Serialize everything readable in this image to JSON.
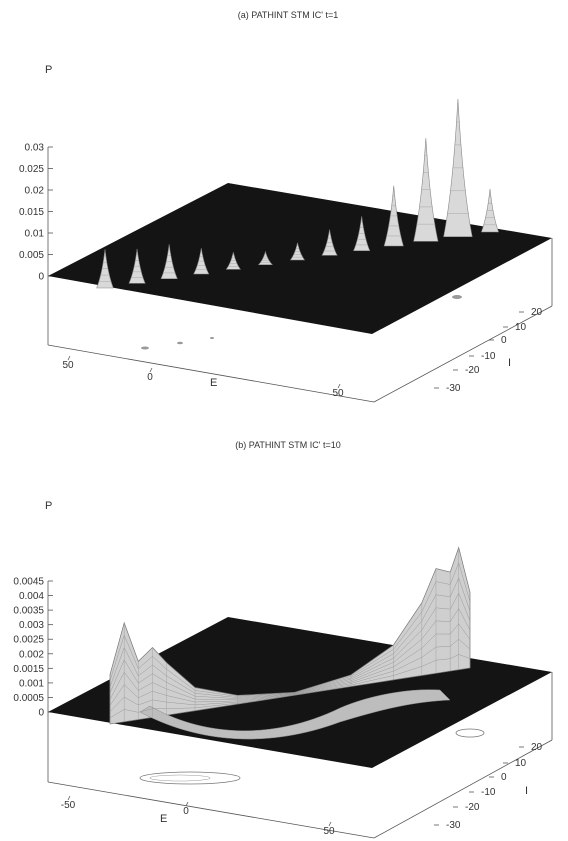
{
  "panels": [
    {
      "title": "(a) PATHINT STM IC' t=1",
      "zlabel": "P",
      "xlabel": "E",
      "ylabel": "I",
      "zticks": [
        "0.03",
        "0.025",
        "0.02",
        "0.015",
        "0.01",
        "0.005",
        "0"
      ],
      "xticks": [
        "50",
        "0",
        "50"
      ],
      "yticks": [
        "20",
        "10",
        "0",
        "-10",
        "-20",
        "-30"
      ]
    },
    {
      "title": "(b) PATHINT STM IC' t=10",
      "zlabel": "P",
      "xlabel": "E",
      "ylabel": "I",
      "zticks": [
        "0.0045",
        "0.004",
        "0.0035",
        "0.003",
        "0.0025",
        "0.002",
        "0.0015",
        "0.001",
        "0.0005",
        "0"
      ],
      "xticks": [
        "-50",
        "0",
        "50"
      ],
      "yticks": [
        "20",
        "10",
        "0",
        "-10",
        "-20",
        "-30"
      ]
    }
  ],
  "chart_data": [
    {
      "type": "surface",
      "title": "(a) PATHINT STM IC' t=1",
      "xlabel": "E",
      "ylabel": "I",
      "zlabel": "P",
      "zlim": [
        0,
        0.03
      ],
      "peaks": [
        {
          "E": -65,
          "I": 0,
          "P": 0.009
        },
        {
          "E": -55,
          "I": 0,
          "P": 0.008
        },
        {
          "E": -45,
          "I": 0,
          "P": 0.008
        },
        {
          "E": -35,
          "I": 0,
          "P": 0.006
        },
        {
          "E": -25,
          "I": 0,
          "P": 0.004
        },
        {
          "E": -15,
          "I": 0,
          "P": 0.003
        },
        {
          "E": -5,
          "I": 0,
          "P": 0.004
        },
        {
          "E": 5,
          "I": 0,
          "P": 0.006
        },
        {
          "E": 15,
          "I": 0,
          "P": 0.008
        },
        {
          "E": 25,
          "I": 0,
          "P": 0.014
        },
        {
          "E": 35,
          "I": 0,
          "P": 0.024
        },
        {
          "E": 45,
          "I": 0,
          "P": 0.032
        },
        {
          "E": 55,
          "I": 0,
          "P": 0.01
        }
      ]
    },
    {
      "type": "surface",
      "title": "(b) PATHINT STM IC' t=10",
      "xlabel": "E",
      "ylabel": "I",
      "zlabel": "P",
      "zlim": [
        0,
        0.0045
      ],
      "ridge": [
        {
          "E": -65,
          "P": 0.0017
        },
        {
          "E": -60,
          "P": 0.0034
        },
        {
          "E": -55,
          "P": 0.002
        },
        {
          "E": -50,
          "P": 0.0024
        },
        {
          "E": -45,
          "P": 0.0018
        },
        {
          "E": -35,
          "P": 0.0008
        },
        {
          "E": -20,
          "P": 0.0003
        },
        {
          "E": 0,
          "P": 0.0001
        },
        {
          "E": 20,
          "P": 0.0004
        },
        {
          "E": 35,
          "P": 0.0012
        },
        {
          "E": 45,
          "P": 0.0025
        },
        {
          "E": 50,
          "P": 0.0036
        },
        {
          "E": 55,
          "P": 0.0034
        },
        {
          "E": 58,
          "P": 0.0042
        },
        {
          "E": 62,
          "P": 0.0026
        }
      ]
    }
  ]
}
